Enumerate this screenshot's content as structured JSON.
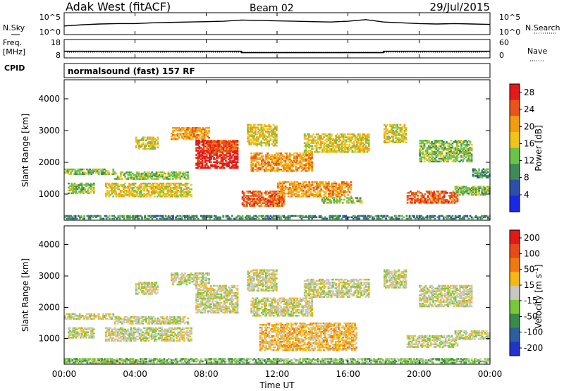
{
  "header": {
    "title": "Adak West (fitACF)",
    "beam": "Beam 02",
    "date": "29/Jul/2015"
  },
  "chart_data": [
    {
      "type": "line",
      "panel": "noise",
      "left_label": "N.Sky",
      "right_label": "N.Search",
      "y_ticks_left": [
        "10^5",
        "10^0"
      ],
      "y_ticks_right": [
        "10^5",
        "10^0"
      ],
      "x": [
        0,
        1,
        2,
        3,
        4,
        5,
        6,
        7,
        8,
        9,
        10,
        11,
        12,
        13,
        14,
        15,
        16,
        17,
        18,
        19,
        20,
        21,
        22,
        23,
        24
      ],
      "series": [
        {
          "values": [
            2.0,
            2.3,
            2.5,
            2.6,
            2.6,
            2.8,
            2.9,
            3.0,
            3.1,
            3.2,
            3.5,
            3.4,
            3.3,
            3.2,
            3.1,
            3.0,
            3.2,
            3.6,
            3.0,
            2.8,
            2.6,
            2.5,
            2.6,
            2.5,
            2.4
          ]
        }
      ],
      "ylim": [
        0,
        5
      ]
    },
    {
      "type": "line",
      "panel": "frequency",
      "left_label": "Freq.",
      "left_unit": "[MHz]",
      "right_label": "Nave",
      "y_ticks_left": [
        "18",
        "8"
      ],
      "y_ticks_right": [
        "60",
        "0"
      ],
      "x": [
        0,
        10,
        10,
        18,
        18,
        24
      ],
      "series": [
        {
          "values": [
            11.6,
            11.6,
            10.8,
            10.8,
            11.6,
            11.6
          ]
        }
      ],
      "ylim": [
        8,
        18
      ]
    },
    {
      "type": "table",
      "panel": "cpid",
      "label": "CPID",
      "value": "normalsound (fast) 157 RF"
    },
    {
      "type": "heatmap",
      "panel": "power",
      "ylabel": "Slant Range [km]",
      "y_ticks": [
        "1000",
        "2000",
        "3000",
        "4000"
      ],
      "ylim": [
        180,
        4600
      ],
      "xlim": [
        0,
        24
      ],
      "colorbar_label": "Power [dB]",
      "colorbar_ticks": [
        "4",
        "8",
        "12",
        "16",
        "20",
        "24",
        "28"
      ],
      "colorbar_range": [
        0,
        30
      ],
      "colors": [
        "#1a27e6",
        "#2d4fa8",
        "#3f8a57",
        "#6cc24a",
        "#f0c419",
        "#f39c12",
        "#e8541b",
        "#e21a1a"
      ],
      "regions": [
        {
          "t0": 0.0,
          "t1": 2.8,
          "r0": 1600,
          "r1": 1800,
          "level": 3
        },
        {
          "t0": 0.2,
          "t1": 1.7,
          "r0": 1000,
          "r1": 1350,
          "level": 3
        },
        {
          "t0": 2.3,
          "t1": 7.2,
          "r0": 900,
          "r1": 1350,
          "level": 4
        },
        {
          "t0": 2.8,
          "t1": 7.0,
          "r0": 1450,
          "r1": 1700,
          "level": 3
        },
        {
          "t0": 4.0,
          "t1": 5.3,
          "r0": 2400,
          "r1": 2800,
          "level": 4
        },
        {
          "t0": 6.0,
          "t1": 8.2,
          "r0": 2700,
          "r1": 3100,
          "level": 5
        },
        {
          "t0": 7.4,
          "t1": 9.8,
          "r0": 1800,
          "r1": 2700,
          "level": 7
        },
        {
          "t0": 8.0,
          "t1": 9.7,
          "r0": 2300,
          "r1": 2700,
          "level": 6
        },
        {
          "t0": 10.0,
          "t1": 12.4,
          "r0": 600,
          "r1": 1100,
          "level": 6
        },
        {
          "t0": 10.5,
          "t1": 14.0,
          "r0": 1700,
          "r1": 2300,
          "level": 5
        },
        {
          "t0": 10.3,
          "t1": 12.0,
          "r0": 2500,
          "r1": 3200,
          "level": 4
        },
        {
          "t0": 12.0,
          "t1": 16.2,
          "r0": 900,
          "r1": 1400,
          "level": 5
        },
        {
          "t0": 13.5,
          "t1": 17.2,
          "r0": 2300,
          "r1": 2900,
          "level": 4
        },
        {
          "t0": 14.5,
          "t1": 16.8,
          "r0": 700,
          "r1": 900,
          "level": 3
        },
        {
          "t0": 18.0,
          "t1": 19.3,
          "r0": 2600,
          "r1": 3200,
          "level": 4
        },
        {
          "t0": 19.3,
          "t1": 22.2,
          "r0": 700,
          "r1": 1100,
          "level": 6
        },
        {
          "t0": 20.0,
          "t1": 23.0,
          "r0": 2000,
          "r1": 2700,
          "level": 3
        },
        {
          "t0": 22.0,
          "t1": 24.0,
          "r0": 950,
          "r1": 1250,
          "level": 3
        },
        {
          "t0": 23.0,
          "t1": 24.0,
          "r0": 1500,
          "r1": 1800,
          "level": 2
        },
        {
          "t0": 0.0,
          "t1": 24.0,
          "r0": 200,
          "r1": 330,
          "level": 2
        }
      ]
    },
    {
      "type": "heatmap",
      "panel": "velocity",
      "ylabel": "Slant Range [km]",
      "y_ticks": [
        "1000",
        "2000",
        "3000",
        "4000"
      ],
      "ylim": [
        180,
        4600
      ],
      "xlim": [
        0,
        24
      ],
      "xlabel": "Time UT",
      "x_ticks": [
        "00:00",
        "04:00",
        "08:00",
        "12:00",
        "16:00",
        "20:00",
        "00:00"
      ],
      "colorbar_label": "Velocity [m s^-1]",
      "colorbar_ticks": [
        "200",
        "100",
        "50",
        "15",
        "-15",
        "-50",
        "-100",
        "-200"
      ],
      "colorbar_range": [
        250,
        -250
      ],
      "colors": [
        "#2234c8",
        "#2d5f9a",
        "#3a8a4a",
        "#78c83a",
        "#c8c8c0",
        "#f5b814",
        "#f07a12",
        "#e84a18",
        "#e01818"
      ],
      "regions": [
        {
          "t0": 0.0,
          "t1": 2.8,
          "r0": 1600,
          "r1": 1800,
          "level": 4
        },
        {
          "t0": 0.2,
          "t1": 1.7,
          "r0": 1000,
          "r1": 1350,
          "level": 4
        },
        {
          "t0": 2.3,
          "t1": 7.2,
          "r0": 900,
          "r1": 1350,
          "level": 4
        },
        {
          "t0": 2.8,
          "t1": 7.0,
          "r0": 1450,
          "r1": 1700,
          "level": 4
        },
        {
          "t0": 4.0,
          "t1": 5.3,
          "r0": 2400,
          "r1": 2800,
          "level": 4
        },
        {
          "t0": 6.0,
          "t1": 8.2,
          "r0": 2700,
          "r1": 3100,
          "level": 4
        },
        {
          "t0": 7.4,
          "t1": 9.8,
          "r0": 1800,
          "r1": 2700,
          "level": 4
        },
        {
          "t0": 10.5,
          "t1": 14.0,
          "r0": 1700,
          "r1": 2300,
          "level": 4
        },
        {
          "t0": 10.3,
          "t1": 12.0,
          "r0": 2500,
          "r1": 3200,
          "level": 4
        },
        {
          "t0": 11.0,
          "t1": 16.5,
          "r0": 600,
          "r1": 1500,
          "level": 5
        },
        {
          "t0": 13.5,
          "t1": 17.2,
          "r0": 2300,
          "r1": 2900,
          "level": 4
        },
        {
          "t0": 18.0,
          "t1": 19.3,
          "r0": 2600,
          "r1": 3200,
          "level": 4
        },
        {
          "t0": 19.3,
          "t1": 22.2,
          "r0": 700,
          "r1": 1100,
          "level": 4
        },
        {
          "t0": 20.0,
          "t1": 23.0,
          "r0": 2000,
          "r1": 2700,
          "level": 4
        },
        {
          "t0": 22.0,
          "t1": 24.0,
          "r0": 950,
          "r1": 1250,
          "level": 4
        },
        {
          "t0": 1.5,
          "t1": 4.5,
          "r0": 180,
          "r1": 320,
          "level": 5
        },
        {
          "t0": 0.0,
          "t1": 24.0,
          "r0": 200,
          "r1": 360,
          "level": 3
        }
      ]
    }
  ]
}
